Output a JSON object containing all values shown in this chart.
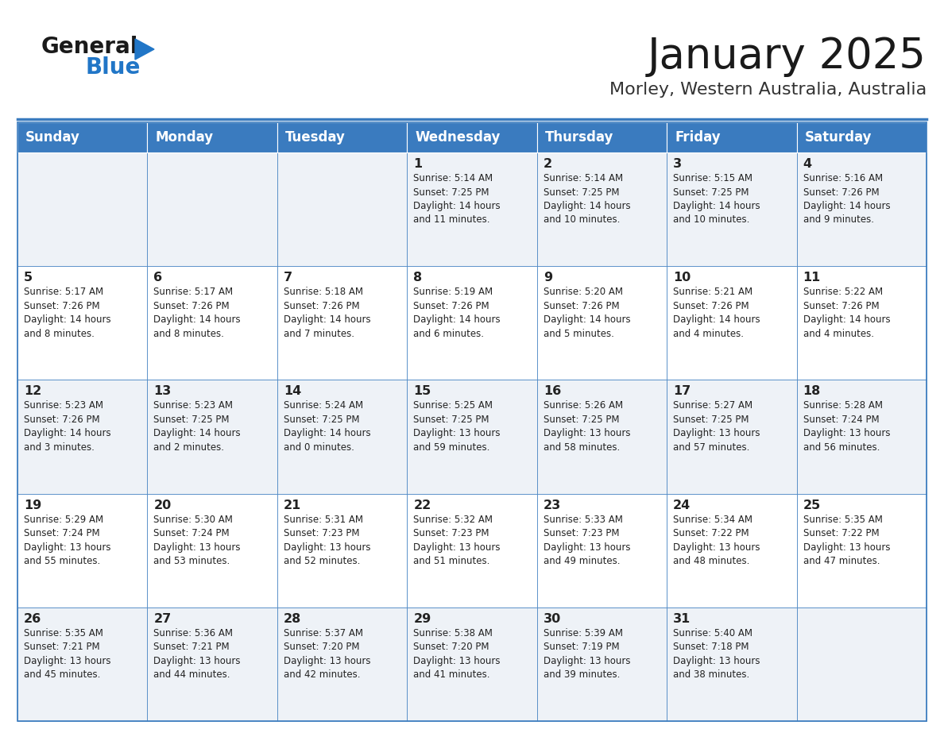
{
  "title": "January 2025",
  "subtitle": "Morley, Western Australia, Australia",
  "days_of_week": [
    "Sunday",
    "Monday",
    "Tuesday",
    "Wednesday",
    "Thursday",
    "Friday",
    "Saturday"
  ],
  "header_bg": "#3a7bbf",
  "header_text": "#ffffff",
  "row_bg_odd": "#eef2f7",
  "row_bg_even": "#ffffff",
  "cell_text": "#222222",
  "border_color": "#3a7bbf",
  "title_color": "#1a1a1a",
  "subtitle_color": "#333333",
  "generalblue_black": "#1a1a1a",
  "generalblue_blue": "#2176c7",
  "logo_line_color": "#3a7bbf",
  "weeks": [
    {
      "days": [
        {
          "day": null,
          "info": null
        },
        {
          "day": null,
          "info": null
        },
        {
          "day": null,
          "info": null
        },
        {
          "day": 1,
          "info": "Sunrise: 5:14 AM\nSunset: 7:25 PM\nDaylight: 14 hours\nand 11 minutes."
        },
        {
          "day": 2,
          "info": "Sunrise: 5:14 AM\nSunset: 7:25 PM\nDaylight: 14 hours\nand 10 minutes."
        },
        {
          "day": 3,
          "info": "Sunrise: 5:15 AM\nSunset: 7:25 PM\nDaylight: 14 hours\nand 10 minutes."
        },
        {
          "day": 4,
          "info": "Sunrise: 5:16 AM\nSunset: 7:26 PM\nDaylight: 14 hours\nand 9 minutes."
        }
      ]
    },
    {
      "days": [
        {
          "day": 5,
          "info": "Sunrise: 5:17 AM\nSunset: 7:26 PM\nDaylight: 14 hours\nand 8 minutes."
        },
        {
          "day": 6,
          "info": "Sunrise: 5:17 AM\nSunset: 7:26 PM\nDaylight: 14 hours\nand 8 minutes."
        },
        {
          "day": 7,
          "info": "Sunrise: 5:18 AM\nSunset: 7:26 PM\nDaylight: 14 hours\nand 7 minutes."
        },
        {
          "day": 8,
          "info": "Sunrise: 5:19 AM\nSunset: 7:26 PM\nDaylight: 14 hours\nand 6 minutes."
        },
        {
          "day": 9,
          "info": "Sunrise: 5:20 AM\nSunset: 7:26 PM\nDaylight: 14 hours\nand 5 minutes."
        },
        {
          "day": 10,
          "info": "Sunrise: 5:21 AM\nSunset: 7:26 PM\nDaylight: 14 hours\nand 4 minutes."
        },
        {
          "day": 11,
          "info": "Sunrise: 5:22 AM\nSunset: 7:26 PM\nDaylight: 14 hours\nand 4 minutes."
        }
      ]
    },
    {
      "days": [
        {
          "day": 12,
          "info": "Sunrise: 5:23 AM\nSunset: 7:26 PM\nDaylight: 14 hours\nand 3 minutes."
        },
        {
          "day": 13,
          "info": "Sunrise: 5:23 AM\nSunset: 7:25 PM\nDaylight: 14 hours\nand 2 minutes."
        },
        {
          "day": 14,
          "info": "Sunrise: 5:24 AM\nSunset: 7:25 PM\nDaylight: 14 hours\nand 0 minutes."
        },
        {
          "day": 15,
          "info": "Sunrise: 5:25 AM\nSunset: 7:25 PM\nDaylight: 13 hours\nand 59 minutes."
        },
        {
          "day": 16,
          "info": "Sunrise: 5:26 AM\nSunset: 7:25 PM\nDaylight: 13 hours\nand 58 minutes."
        },
        {
          "day": 17,
          "info": "Sunrise: 5:27 AM\nSunset: 7:25 PM\nDaylight: 13 hours\nand 57 minutes."
        },
        {
          "day": 18,
          "info": "Sunrise: 5:28 AM\nSunset: 7:24 PM\nDaylight: 13 hours\nand 56 minutes."
        }
      ]
    },
    {
      "days": [
        {
          "day": 19,
          "info": "Sunrise: 5:29 AM\nSunset: 7:24 PM\nDaylight: 13 hours\nand 55 minutes."
        },
        {
          "day": 20,
          "info": "Sunrise: 5:30 AM\nSunset: 7:24 PM\nDaylight: 13 hours\nand 53 minutes."
        },
        {
          "day": 21,
          "info": "Sunrise: 5:31 AM\nSunset: 7:23 PM\nDaylight: 13 hours\nand 52 minutes."
        },
        {
          "day": 22,
          "info": "Sunrise: 5:32 AM\nSunset: 7:23 PM\nDaylight: 13 hours\nand 51 minutes."
        },
        {
          "day": 23,
          "info": "Sunrise: 5:33 AM\nSunset: 7:23 PM\nDaylight: 13 hours\nand 49 minutes."
        },
        {
          "day": 24,
          "info": "Sunrise: 5:34 AM\nSunset: 7:22 PM\nDaylight: 13 hours\nand 48 minutes."
        },
        {
          "day": 25,
          "info": "Sunrise: 5:35 AM\nSunset: 7:22 PM\nDaylight: 13 hours\nand 47 minutes."
        }
      ]
    },
    {
      "days": [
        {
          "day": 26,
          "info": "Sunrise: 5:35 AM\nSunset: 7:21 PM\nDaylight: 13 hours\nand 45 minutes."
        },
        {
          "day": 27,
          "info": "Sunrise: 5:36 AM\nSunset: 7:21 PM\nDaylight: 13 hours\nand 44 minutes."
        },
        {
          "day": 28,
          "info": "Sunrise: 5:37 AM\nSunset: 7:20 PM\nDaylight: 13 hours\nand 42 minutes."
        },
        {
          "day": 29,
          "info": "Sunrise: 5:38 AM\nSunset: 7:20 PM\nDaylight: 13 hours\nand 41 minutes."
        },
        {
          "day": 30,
          "info": "Sunrise: 5:39 AM\nSunset: 7:19 PM\nDaylight: 13 hours\nand 39 minutes."
        },
        {
          "day": 31,
          "info": "Sunrise: 5:40 AM\nSunset: 7:18 PM\nDaylight: 13 hours\nand 38 minutes."
        },
        {
          "day": null,
          "info": null
        }
      ]
    }
  ]
}
